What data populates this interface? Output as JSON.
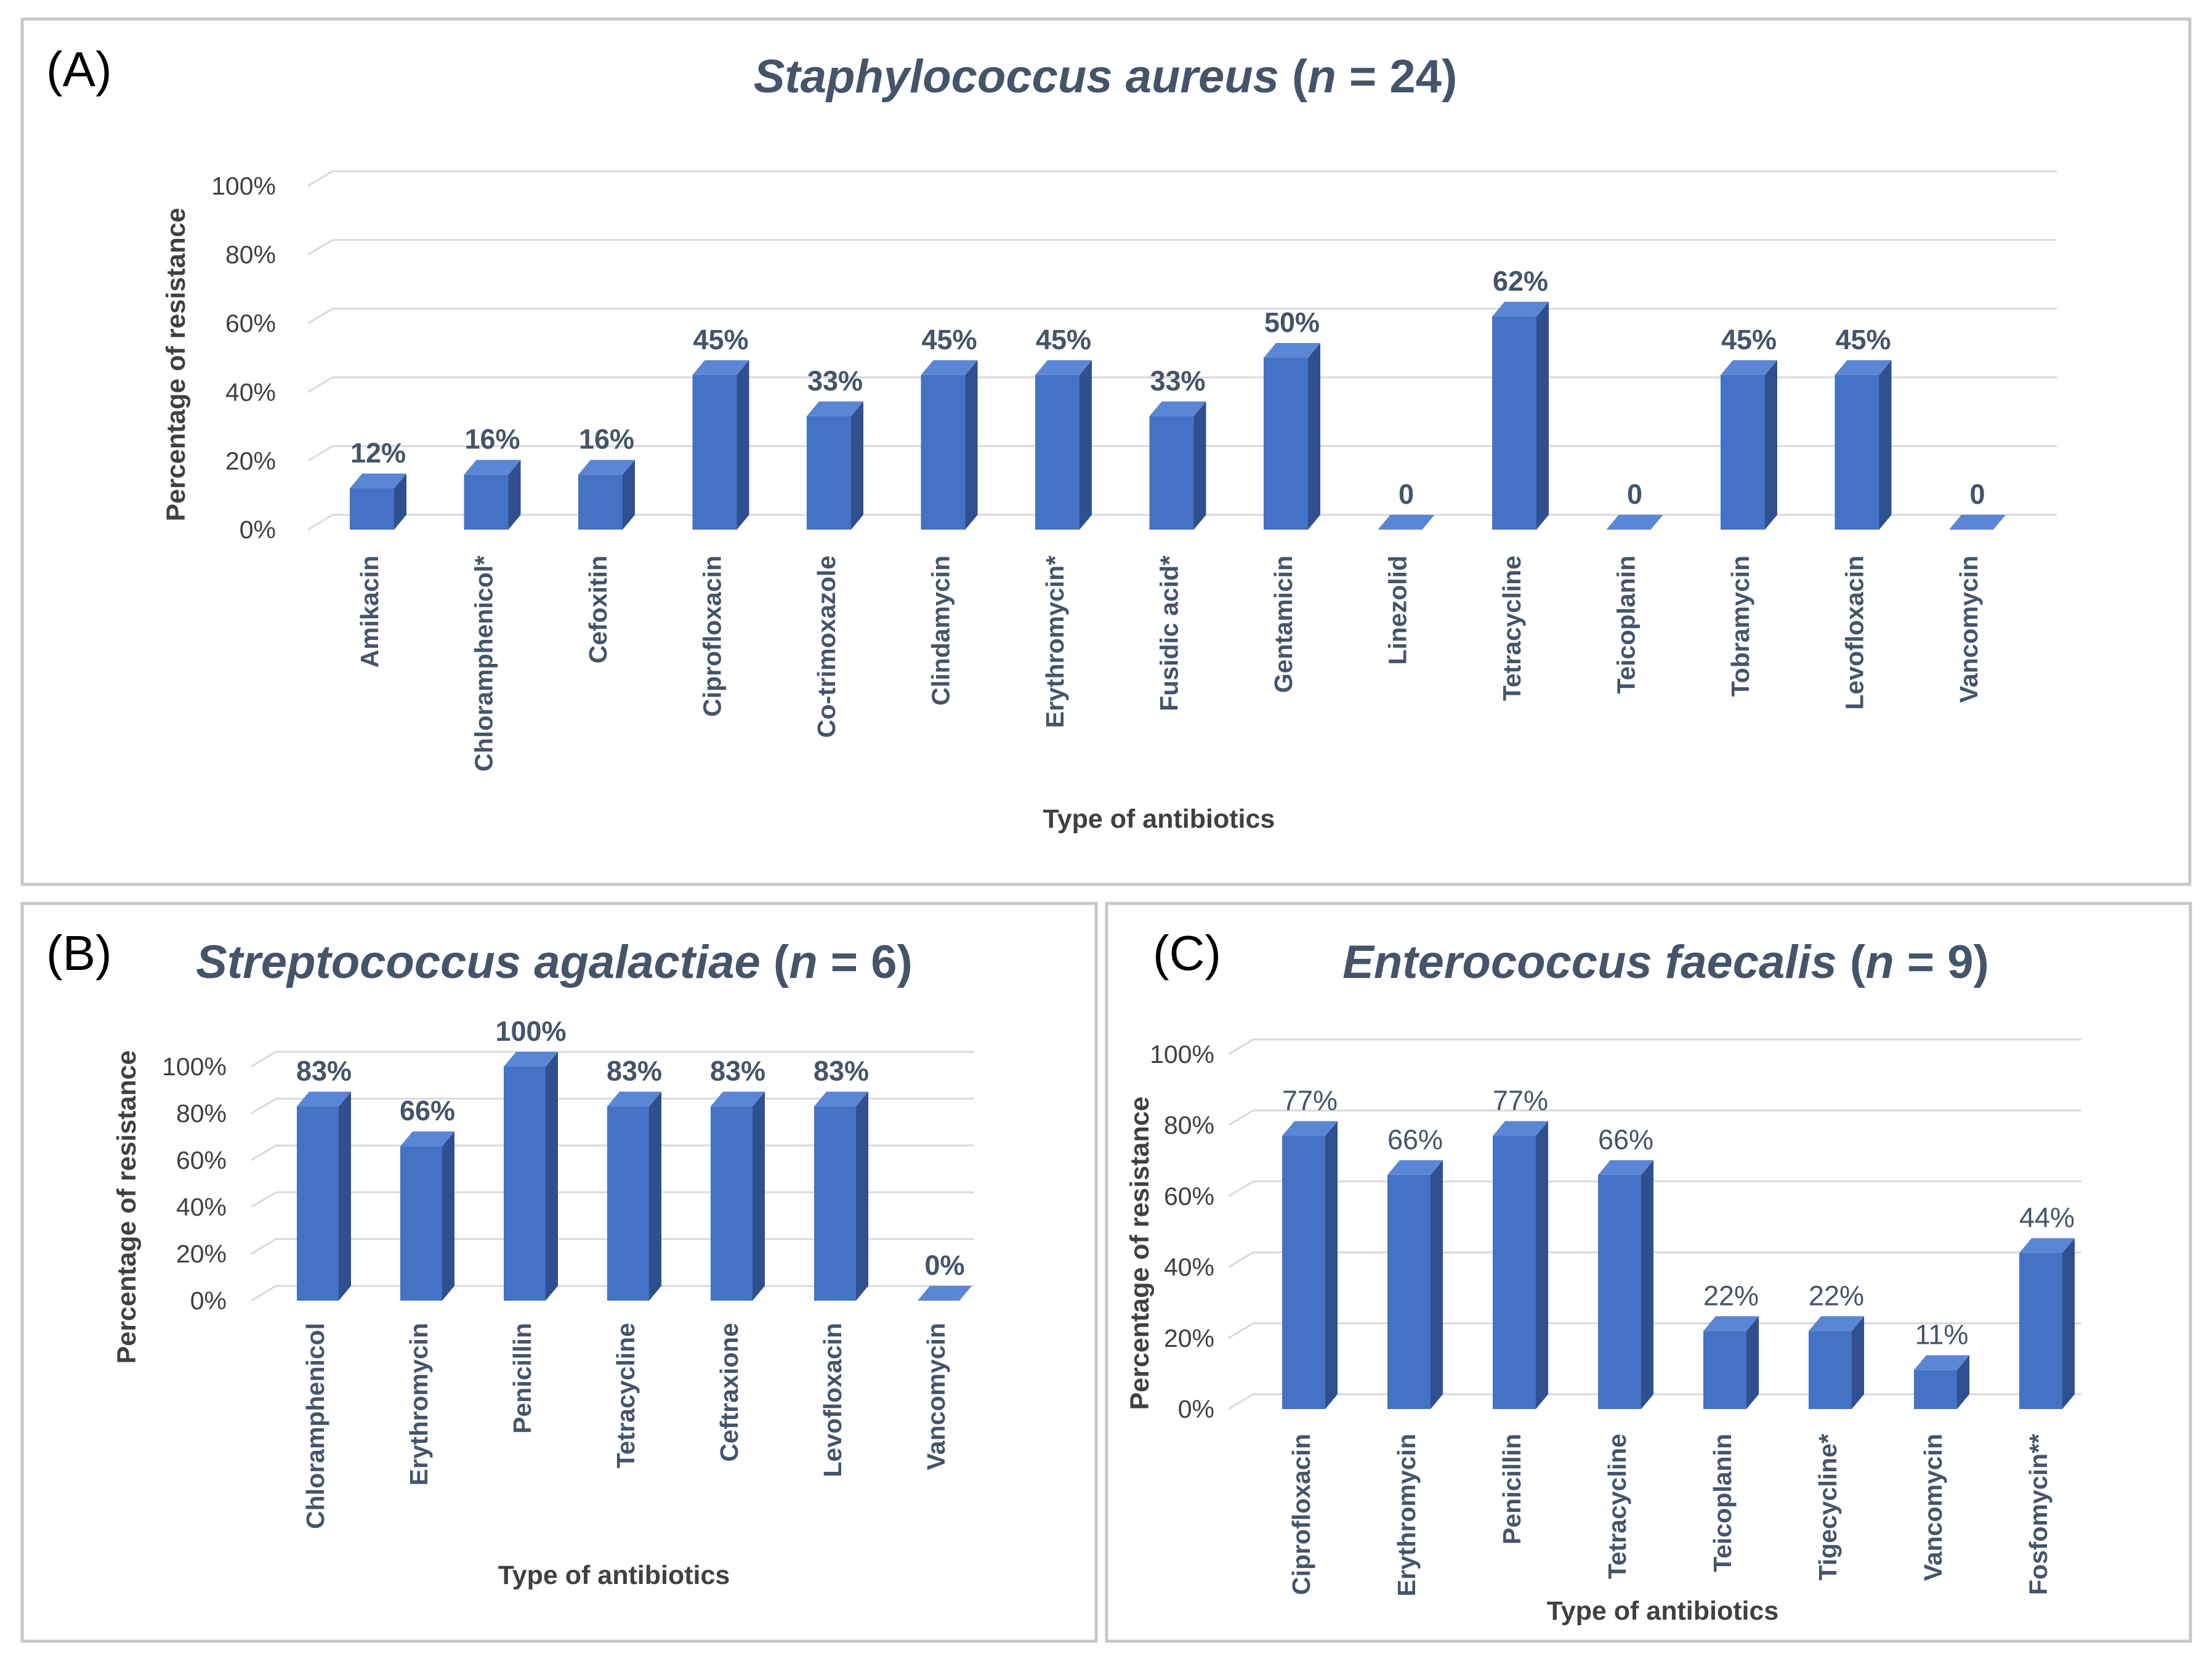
{
  "colors": {
    "bar_front": "#4472c4",
    "bar_side": "#2f4f8f",
    "bar_top": "#5b86d6",
    "text": "#44546a"
  },
  "chart_data": [
    {
      "id": "A",
      "panel_label": "(A)",
      "type": "bar",
      "title": {
        "organism": "Staphylococcus aureus",
        "paren_open": " (",
        "n_var": "n",
        "n_rest": " = 24)"
      },
      "categories": [
        "Amikacin",
        "Chloramphenicol*",
        "Cefoxitin",
        "Ciprofloxacin",
        "Co-trimoxazole",
        "Clindamycin",
        "Erythromycin*",
        "Fusidic acid*",
        "Gentamicin",
        "Linezolid",
        "Tetracycline",
        "Teicoplanin",
        "Tobramycin",
        "Levofloxacin",
        "Vancomycin"
      ],
      "values": [
        12,
        16,
        16,
        45,
        33,
        45,
        45,
        33,
        50,
        0,
        62,
        0,
        45,
        45,
        0
      ],
      "data_labels": [
        "12%",
        "16%",
        "16%",
        "45%",
        "33%",
        "45%",
        "45%",
        "33%",
        "50%",
        "0",
        "62%",
        "0",
        "45%",
        "45%",
        "0"
      ],
      "yticks": [
        "0%",
        "20%",
        "40%",
        "60%",
        "80%",
        "100%"
      ],
      "ylim": [
        0,
        100
      ],
      "xlabel": "Type of antibiotics",
      "ylabel": "Percentage of resistance"
    },
    {
      "id": "B",
      "panel_label": "(B)",
      "type": "bar",
      "title": {
        "organism": "Streptococcus agalactiae",
        "paren_open": " (",
        "n_var": "n",
        "n_rest": " = 6)"
      },
      "categories": [
        "Chloramphenicol",
        "Erythromycin",
        "Penicillin",
        "Tetracycline",
        "Ceftraxione",
        "Levofloxacin",
        "Vancomycin"
      ],
      "values": [
        83,
        66,
        100,
        83,
        83,
        83,
        0
      ],
      "data_labels": [
        "83%",
        "66%",
        "100%",
        "83%",
        "83%",
        "83%",
        "0%"
      ],
      "yticks": [
        "0%",
        "20%",
        "40%",
        "60%",
        "80%",
        "100%"
      ],
      "ylim": [
        0,
        100
      ],
      "xlabel": "Type of antibiotics",
      "ylabel": "Percentage of resistance"
    },
    {
      "id": "C",
      "panel_label": "(C)",
      "type": "bar",
      "title": {
        "organism": "Enterococcus faecalis",
        "paren_open": " (",
        "n_var": "n",
        "n_rest": " = 9)"
      },
      "categories": [
        "Ciprofloxacin",
        "Erythromycin",
        "Penicillin",
        "Tetracycline",
        "Teicoplanin",
        "Tigecycline*",
        "Vancomycin",
        "Fosfomycin**"
      ],
      "values": [
        77,
        66,
        77,
        66,
        22,
        22,
        11,
        44
      ],
      "data_labels": [
        "77%",
        "66%",
        "77%",
        "66%",
        "22%",
        "22%",
        "11%",
        "44%"
      ],
      "yticks": [
        "0%",
        "20%",
        "40%",
        "60%",
        "80%",
        "100%"
      ],
      "ylim": [
        0,
        100
      ],
      "xlabel": "Type of antibiotics",
      "ylabel": "Percentage of resistance"
    }
  ]
}
